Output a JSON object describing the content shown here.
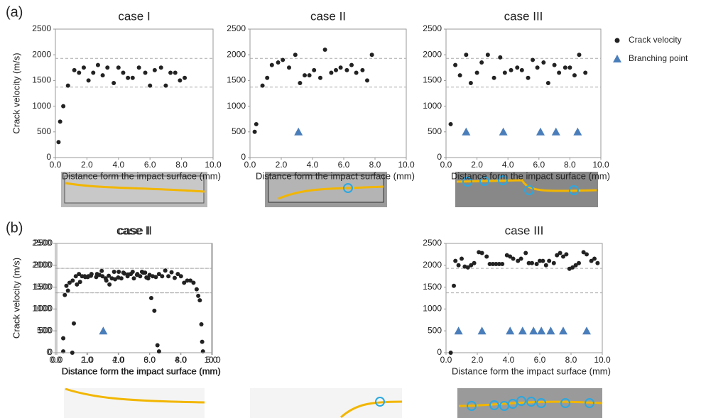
{
  "panel_labels": [
    "(a)",
    "(b)"
  ],
  "chart_data": [
    {
      "type": "scatter",
      "title": "case I",
      "xlabel": "Distance form the impact surface (mm)",
      "ylabel": "Crack velocity (m/s)",
      "xlim": [
        0,
        10
      ],
      "ylim": [
        0,
        2500
      ],
      "xticks": [
        {
          "value": 0,
          "label": "0.0"
        },
        {
          "value": 2,
          "label": "2.0"
        },
        {
          "value": 4,
          "label": "4.0"
        },
        {
          "value": 6,
          "label": "6.0"
        },
        {
          "value": 8,
          "label": "8.0"
        },
        {
          "value": 10,
          "label": "10.0"
        }
      ],
      "yticks": [
        0,
        500,
        1000,
        1500,
        2000,
        2500
      ],
      "hlines": [
        1930,
        1370
      ],
      "series": [
        {
          "color": "#222222",
          "marker": "circle",
          "x": [
            0.2,
            0.3,
            0.5,
            0.8,
            1.2,
            1.5,
            1.8,
            2.1,
            2.4,
            2.7,
            3.0,
            3.3,
            3.7,
            4.0,
            4.3,
            4.6,
            4.9,
            5.3,
            5.7,
            6.0,
            6.3,
            6.7,
            7.0,
            7.3,
            7.6,
            7.9,
            8.2
          ],
          "values": [
            300,
            700,
            1000,
            1400,
            1700,
            1650,
            1750,
            1500,
            1650,
            1800,
            1600,
            1750,
            1450,
            1750,
            1650,
            1550,
            1550,
            1750,
            1650,
            1400,
            1700,
            1750,
            1400,
            1650,
            1650,
            1500,
            1550
          ]
        }
      ]
    },
    {
      "type": "scatter",
      "title": "case II",
      "xlabel": "Distance form the impact surface (mm)",
      "xlim": [
        0,
        10
      ],
      "ylim": [
        0,
        2500
      ],
      "xticks": [
        {
          "value": 0,
          "label": "0.0"
        },
        {
          "value": 2,
          "label": "2.0"
        },
        {
          "value": 4,
          "label": "4.0"
        },
        {
          "value": 6,
          "label": "6.0"
        },
        {
          "value": 8,
          "label": "8.0"
        },
        {
          "value": 10,
          "label": "10.0"
        }
      ],
      "yticks": [
        0,
        500,
        1000,
        1500,
        2000,
        2500
      ],
      "hlines": [
        1930,
        1370
      ],
      "series": [
        {
          "color": "#222222",
          "marker": "circle",
          "x": [
            0.3,
            0.4,
            0.8,
            1.1,
            1.4,
            1.8,
            2.1,
            2.5,
            2.9,
            3.2,
            3.5,
            3.8,
            4.1,
            4.5,
            4.8,
            5.2,
            5.5,
            5.8,
            6.2,
            6.5,
            6.8,
            7.2,
            7.5,
            7.8
          ],
          "values": [
            500,
            650,
            1400,
            1550,
            1800,
            1850,
            1900,
            1750,
            2000,
            1450,
            1600,
            1600,
            1700,
            1550,
            2100,
            1650,
            1700,
            1750,
            1700,
            1800,
            1650,
            1700,
            1500,
            2000
          ]
        },
        {
          "color": "#4a7ebb",
          "marker": "triangle",
          "x": [
            3.1
          ],
          "values": [
            500
          ]
        }
      ]
    },
    {
      "type": "scatter",
      "title": "case III",
      "xlabel": "Distance form the impact surface (mm)",
      "xlim": [
        0,
        10
      ],
      "ylim": [
        0,
        2500
      ],
      "xticks": [
        {
          "value": 0,
          "label": "0.0"
        },
        {
          "value": 2,
          "label": "2.0"
        },
        {
          "value": 4,
          "label": "4.0"
        },
        {
          "value": 6,
          "label": "6.0"
        },
        {
          "value": 8,
          "label": "8.0"
        },
        {
          "value": 10,
          "label": "10.0"
        }
      ],
      "yticks": [
        0,
        500,
        1000,
        1500,
        2000,
        2500
      ],
      "hlines": [
        1930,
        1370
      ],
      "legend": "right",
      "series": [
        {
          "name": "Crack velocity",
          "color": "#222222",
          "marker": "circle",
          "x": [
            0.3,
            0.6,
            0.9,
            1.3,
            1.6,
            2.0,
            2.3,
            2.7,
            3.1,
            3.5,
            3.8,
            4.2,
            4.6,
            4.9,
            5.3,
            5.6,
            5.9,
            6.3,
            6.6,
            7.0,
            7.3,
            7.7,
            8.0,
            8.3,
            8.6,
            9.0
          ],
          "values": [
            650,
            1800,
            1600,
            2000,
            1450,
            1650,
            1850,
            2000,
            1550,
            1950,
            1650,
            1700,
            1750,
            1700,
            1550,
            1900,
            1750,
            1850,
            1450,
            1800,
            1650,
            1750,
            1750,
            1600,
            2000,
            1650
          ]
        },
        {
          "name": "Branching point",
          "color": "#4a7ebb",
          "marker": "triangle",
          "x": [
            1.3,
            3.7,
            6.1,
            7.1,
            8.5
          ],
          "values": [
            500,
            500,
            500,
            500,
            500
          ]
        }
      ]
    },
    {
      "type": "scatter",
      "title": "case I",
      "xlabel": "Distance form the impact surface (mm)",
      "ylabel": "Crack velocity (m/s)",
      "xlim": [
        0,
        10
      ],
      "ylim": [
        0,
        2500
      ],
      "xticks": [
        {
          "value": 0,
          "label": "0.0"
        },
        {
          "value": 2,
          "label": "2.0"
        },
        {
          "value": 4,
          "label": "4.0"
        },
        {
          "value": 6,
          "label": "6.0"
        },
        {
          "value": 8,
          "label": "8.0"
        },
        {
          "value": 10,
          "label": "10.0"
        }
      ],
      "yticks": [
        0,
        500,
        1000,
        1500,
        2000,
        2500
      ],
      "hlines": [
        1930,
        1370
      ],
      "series": [
        {
          "color": "#222222",
          "marker": "circle",
          "x": [
            0.5,
            0.5,
            0.6,
            0.7,
            0.8,
            0.9,
            1.1,
            1.3,
            1.5,
            1.7,
            1.9,
            2.1,
            2.3,
            2.6,
            2.8,
            3.0,
            3.2,
            3.4,
            3.6,
            3.8,
            4.0,
            4.2,
            4.4,
            4.6,
            4.8,
            5.0,
            5.2,
            5.4,
            5.6,
            5.8,
            6.0,
            6.2,
            6.4,
            6.6,
            6.8,
            7.0,
            7.2,
            7.4,
            7.6,
            7.8,
            8.0,
            8.2,
            8.4,
            8.6,
            8.8,
            9.0,
            9.1,
            9.2,
            9.3,
            9.35,
            9.4
          ],
          "values": [
            30,
            330,
            1320,
            1530,
            1420,
            1600,
            1650,
            1750,
            1800,
            1750,
            1730,
            1750,
            1800,
            1730,
            1780,
            1750,
            1700,
            1760,
            1700,
            1680,
            1720,
            1700,
            1810,
            1750,
            1800,
            1700,
            1780,
            1750,
            1830,
            1720,
            1780,
            1750,
            1730,
            1800,
            1750,
            1880,
            1750,
            1840,
            1710,
            1800,
            1750,
            1600,
            1650,
            1650,
            1600,
            1450,
            1300,
            1200,
            650,
            250,
            30
          ]
        }
      ]
    },
    {
      "type": "scatter",
      "title": "case II",
      "xlabel": "Distance form the impact surface (mm)",
      "xlim": [
        0,
        5
      ],
      "ylim": [
        0,
        2500
      ],
      "xticks": [
        {
          "value": 0,
          "label": "0.0"
        },
        {
          "value": 1,
          "label": "1.0"
        },
        {
          "value": 2,
          "label": "2.0"
        },
        {
          "value": 3,
          "label": "3.0"
        },
        {
          "value": 4,
          "label": "4.0"
        },
        {
          "value": 5,
          "label": "5.0"
        }
      ],
      "yticks": [
        0,
        500,
        1000,
        1500,
        2000,
        2500
      ],
      "hlines": [
        1930,
        1370
      ],
      "series": [
        {
          "color": "#222222",
          "marker": "circle",
          "x": [
            0.5,
            0.55,
            0.65,
            0.75,
            0.9,
            1.0,
            1.1,
            1.3,
            1.45,
            1.6,
            1.7,
            1.85,
            2.0,
            2.15,
            2.3,
            2.45,
            2.6,
            2.75,
            2.85,
            2.95,
            3.05,
            3.15,
            3.25,
            3.3
          ],
          "values": [
            0,
            670,
            1560,
            1620,
            1750,
            1730,
            1760,
            1800,
            1870,
            1650,
            1560,
            1850,
            1850,
            1830,
            1790,
            1850,
            1800,
            1850,
            1830,
            1700,
            1250,
            960,
            170,
            30
          ]
        },
        {
          "color": "#4a7ebb",
          "marker": "triangle",
          "x": [
            1.5
          ],
          "values": [
            500
          ]
        }
      ]
    },
    {
      "type": "scatter",
      "title": "case III",
      "xlabel": "Distance form the impact surface (mm)",
      "xlim": [
        0,
        10
      ],
      "ylim": [
        0,
        2500
      ],
      "xticks": [
        {
          "value": 0,
          "label": "0.0"
        },
        {
          "value": 2,
          "label": "2.0"
        },
        {
          "value": 4,
          "label": "4.0"
        },
        {
          "value": 6,
          "label": "6.0"
        },
        {
          "value": 8,
          "label": "8.0"
        },
        {
          "value": 10,
          "label": "10.0"
        }
      ],
      "yticks": [
        0,
        500,
        1000,
        1500,
        2000,
        2500
      ],
      "hlines": [
        1930,
        1370
      ],
      "series": [
        {
          "color": "#222222",
          "marker": "circle",
          "x": [
            0.3,
            0.5,
            0.6,
            0.8,
            1.0,
            1.2,
            1.4,
            1.6,
            1.8,
            2.1,
            2.3,
            2.6,
            2.8,
            3.0,
            3.2,
            3.4,
            3.6,
            3.9,
            4.1,
            4.3,
            4.6,
            4.8,
            5.1,
            5.3,
            5.5,
            5.8,
            6.0,
            6.2,
            6.4,
            6.6,
            6.9,
            7.1,
            7.3,
            7.5,
            7.7,
            7.9,
            8.1,
            8.3,
            8.5,
            8.8,
            9.0,
            9.3,
            9.5,
            9.7
          ],
          "values": [
            0,
            1530,
            2100,
            2000,
            2150,
            1970,
            1950,
            2000,
            2050,
            2300,
            2280,
            2200,
            2030,
            2030,
            2030,
            2030,
            2030,
            2230,
            2200,
            2150,
            2100,
            2150,
            2280,
            2050,
            2050,
            2030,
            2100,
            2100,
            2000,
            2100,
            2050,
            2230,
            2280,
            2200,
            2250,
            1920,
            1950,
            2000,
            2050,
            2300,
            2250,
            2100,
            2150,
            2050
          ]
        },
        {
          "color": "#4a7ebb",
          "marker": "triangle",
          "x": [
            0.8,
            2.3,
            4.1,
            4.9,
            5.6,
            6.1,
            6.7,
            7.5,
            9.0
          ],
          "values": [
            500,
            500,
            500,
            500,
            500,
            500,
            500,
            500,
            500
          ]
        }
      ]
    }
  ]
}
